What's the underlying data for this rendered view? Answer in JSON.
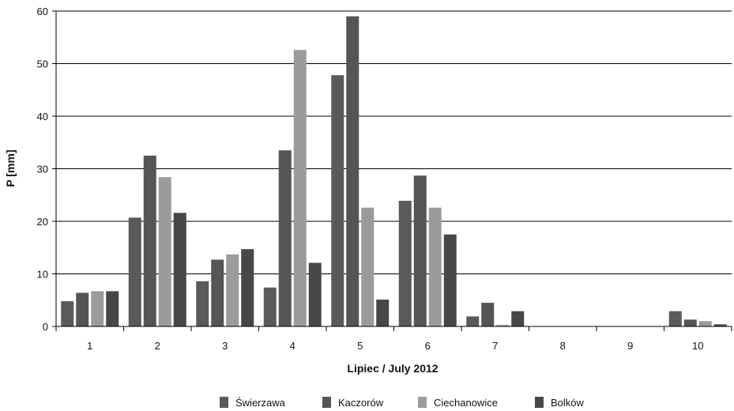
{
  "chart_data": {
    "type": "bar",
    "title": "",
    "xlabel": "Lipiec / July 2012",
    "ylabel": "P [mm]",
    "ylim": [
      0,
      60
    ],
    "yticks": [
      0,
      10,
      20,
      30,
      40,
      50,
      60
    ],
    "grid": true,
    "legend_position": "bottom",
    "categories": [
      "1",
      "2",
      "3",
      "4",
      "5",
      "6",
      "7",
      "8",
      "9",
      "10"
    ],
    "series": [
      {
        "name": "Świerzawa",
        "color": "#5a5a5a",
        "values": [
          4.8,
          20.7,
          8.6,
          7.4,
          47.8,
          23.9,
          1.9,
          0,
          0,
          2.9
        ]
      },
      {
        "name": "Kaczorów",
        "color": "#555555",
        "values": [
          6.4,
          32.5,
          12.7,
          33.5,
          59.0,
          28.7,
          4.5,
          0,
          0,
          1.3
        ]
      },
      {
        "name": "Ciechanowice",
        "color": "#9b9b9b",
        "values": [
          6.7,
          28.4,
          13.7,
          52.6,
          22.6,
          22.6,
          0.3,
          0,
          0,
          1.0
        ]
      },
      {
        "name": "Bolków",
        "color": "#474747",
        "values": [
          6.7,
          21.6,
          14.7,
          12.1,
          5.1,
          17.5,
          2.9,
          0,
          0,
          0.4
        ]
      }
    ]
  }
}
